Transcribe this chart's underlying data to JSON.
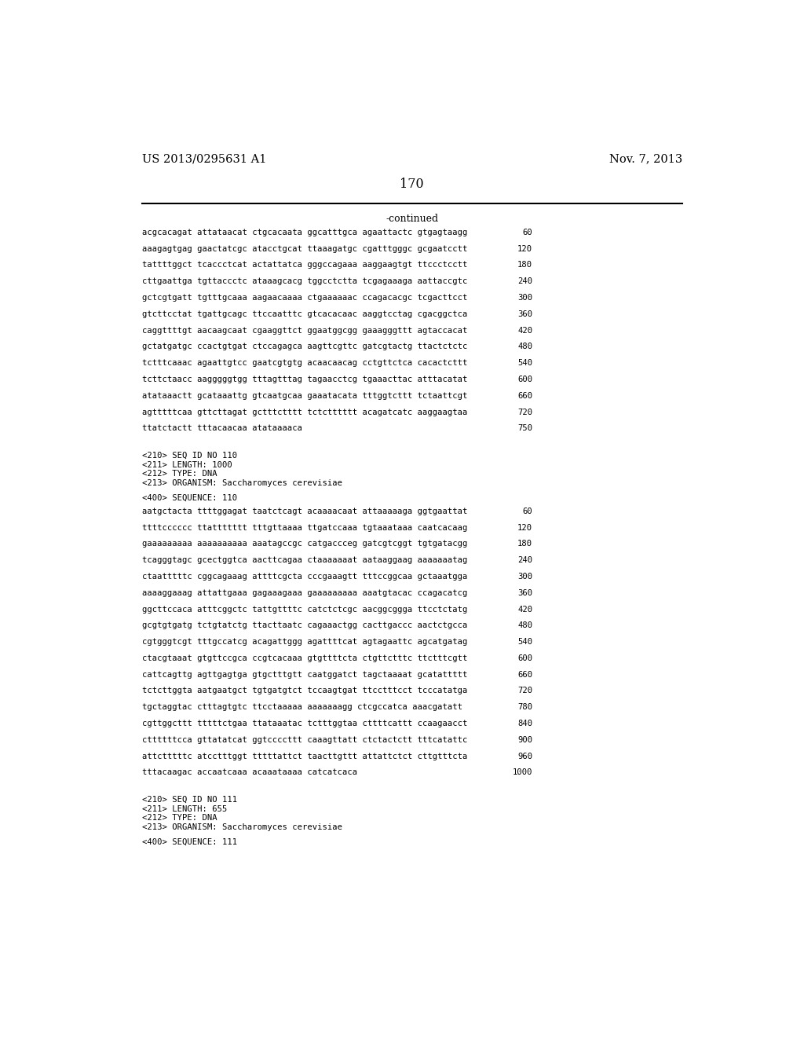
{
  "header_left": "US 2013/0295631 A1",
  "header_right": "Nov. 7, 2013",
  "page_number": "170",
  "continued_label": "-continued",
  "background_color": "#ffffff",
  "text_color": "#000000",
  "sequence_block_lines": [
    [
      "acgcacagat attataacat ctgcacaata ggcatttgca agaattactc gtgagtaagg",
      "60"
    ],
    [
      "aaagagtgag gaactatcgc atacctgcat ttaaagatgc cgatttgggc gcgaatcctt",
      "120"
    ],
    [
      "tattttggct tcaccctcat actattatca gggccagaaa aaggaagtgt ttccctcctt",
      "180"
    ],
    [
      "cttgaattga tgttaccctc ataaagcacg tggcctctta tcgagaaaga aattaccgtc",
      "240"
    ],
    [
      "gctcgtgatt tgtttgcaaa aagaacaaaa ctgaaaaaac ccagacacgc tcgacttcct",
      "300"
    ],
    [
      "gtcttcctat tgattgcagc ttccaatttc gtcacacaac aaggtcctag cgacggctca",
      "360"
    ],
    [
      "caggttttgt aacaagcaat cgaaggttct ggaatggcgg gaaagggttt agtaccacat",
      "420"
    ],
    [
      "gctatgatgc ccactgtgat ctccagagca aagttcgttc gatcgtactg ttactctctc",
      "480"
    ],
    [
      "tctttcaaac agaattgtcc gaatcgtgtg acaacaacag cctgttctca cacactcttt",
      "540"
    ],
    [
      "tcttctaacc aagggggtgg tttagtttag tagaacctcg tgaaacttac atttacatat",
      "600"
    ],
    [
      "atataaactt gcataaattg gtcaatgcaa gaaatacata tttggtcttt tctaattcgt",
      "660"
    ],
    [
      "agtttttcaa gttcttagat gctttctttt tctctttttt acagatcatc aaggaagtaa",
      "720"
    ],
    [
      "ttatctactt tttacaacaa atataaaaca",
      "750"
    ]
  ],
  "seq_meta_110": [
    "<210> SEQ ID NO 110",
    "<211> LENGTH: 1000",
    "<212> TYPE: DNA",
    "<213> ORGANISM: Saccharomyces cerevisiae"
  ],
  "seq_400_110": "<400> SEQUENCE: 110",
  "sequence_110_lines": [
    [
      "aatgctacta ttttggagat taatctcagt acaaaacaat attaaaaaga ggtgaattat",
      "60"
    ],
    [
      "ttttcccccc ttattttttt tttgttaaaa ttgatccaaa tgtaaataaa caatcacaag",
      "120"
    ],
    [
      "gaaaaaaaaa aaaaaaaaaa aaatagccgc catgaccceg gatcgtcggt tgtgatacgg",
      "180"
    ],
    [
      "tcagggtagc gcectggtca aacttcagaa ctaaaaaaat aataaggaag aaaaaaatag",
      "240"
    ],
    [
      "ctaatttttc cggcagaaag attttcgcta cccgaaagtt tttccggcaa gctaaatgga",
      "300"
    ],
    [
      "aaaaggaaag attattgaaa gagaaagaaa gaaaaaaaaa aaatgtacac ccagacatcg",
      "360"
    ],
    [
      "ggcttccaca atttcggctc tattgttttc catctctcgc aacggcggga ttcctctatg",
      "420"
    ],
    [
      "gcgtgtgatg tctgtatctg ttacttaatc cagaaactgg cacttgaccc aactctgcca",
      "480"
    ],
    [
      "cgtgggtcgt tttgccatcg acagattggg agattttcat agtagaattc agcatgatag",
      "540"
    ],
    [
      "ctacgtaaat gtgttccgca ccgtcacaaa gtgttttcta ctgttctttc ttctttcgtt",
      "600"
    ],
    [
      "cattcagttg agttgagtga gtgctttgtt caatggatct tagctaaaat gcatattttt",
      "660"
    ],
    [
      "tctcttggta aatgaatgct tgtgatgtct tccaagtgat ttcctttcct tcccatatga",
      "720"
    ],
    [
      "tgctaggtac ctttagtgtc ttcctaaaaa aaaaaaagg ctcgccatca aaacgatatt",
      "780"
    ],
    [
      "cgttggcttt tttttctgaa ttataaatac tctttggtaa cttttcattt ccaagaacct",
      "840"
    ],
    [
      "cttttttcca gttatatcat ggtccccttt caaagttatt ctctactctt tttcatattc",
      "900"
    ],
    [
      "attctttttc atcctttggt tttttattct taacttgttt attattctct cttgtttcta",
      "960"
    ],
    [
      "tttacaagac accaatcaaa acaaataaaa catcatcaca",
      "1000"
    ]
  ],
  "seq_meta_111": [
    "<210> SEQ ID NO 111",
    "<211> LENGTH: 655",
    "<212> TYPE: DNA",
    "<213> ORGANISM: Saccharomyces cerevisiae"
  ],
  "seq_400_111": "<400> SEQUENCE: 111"
}
